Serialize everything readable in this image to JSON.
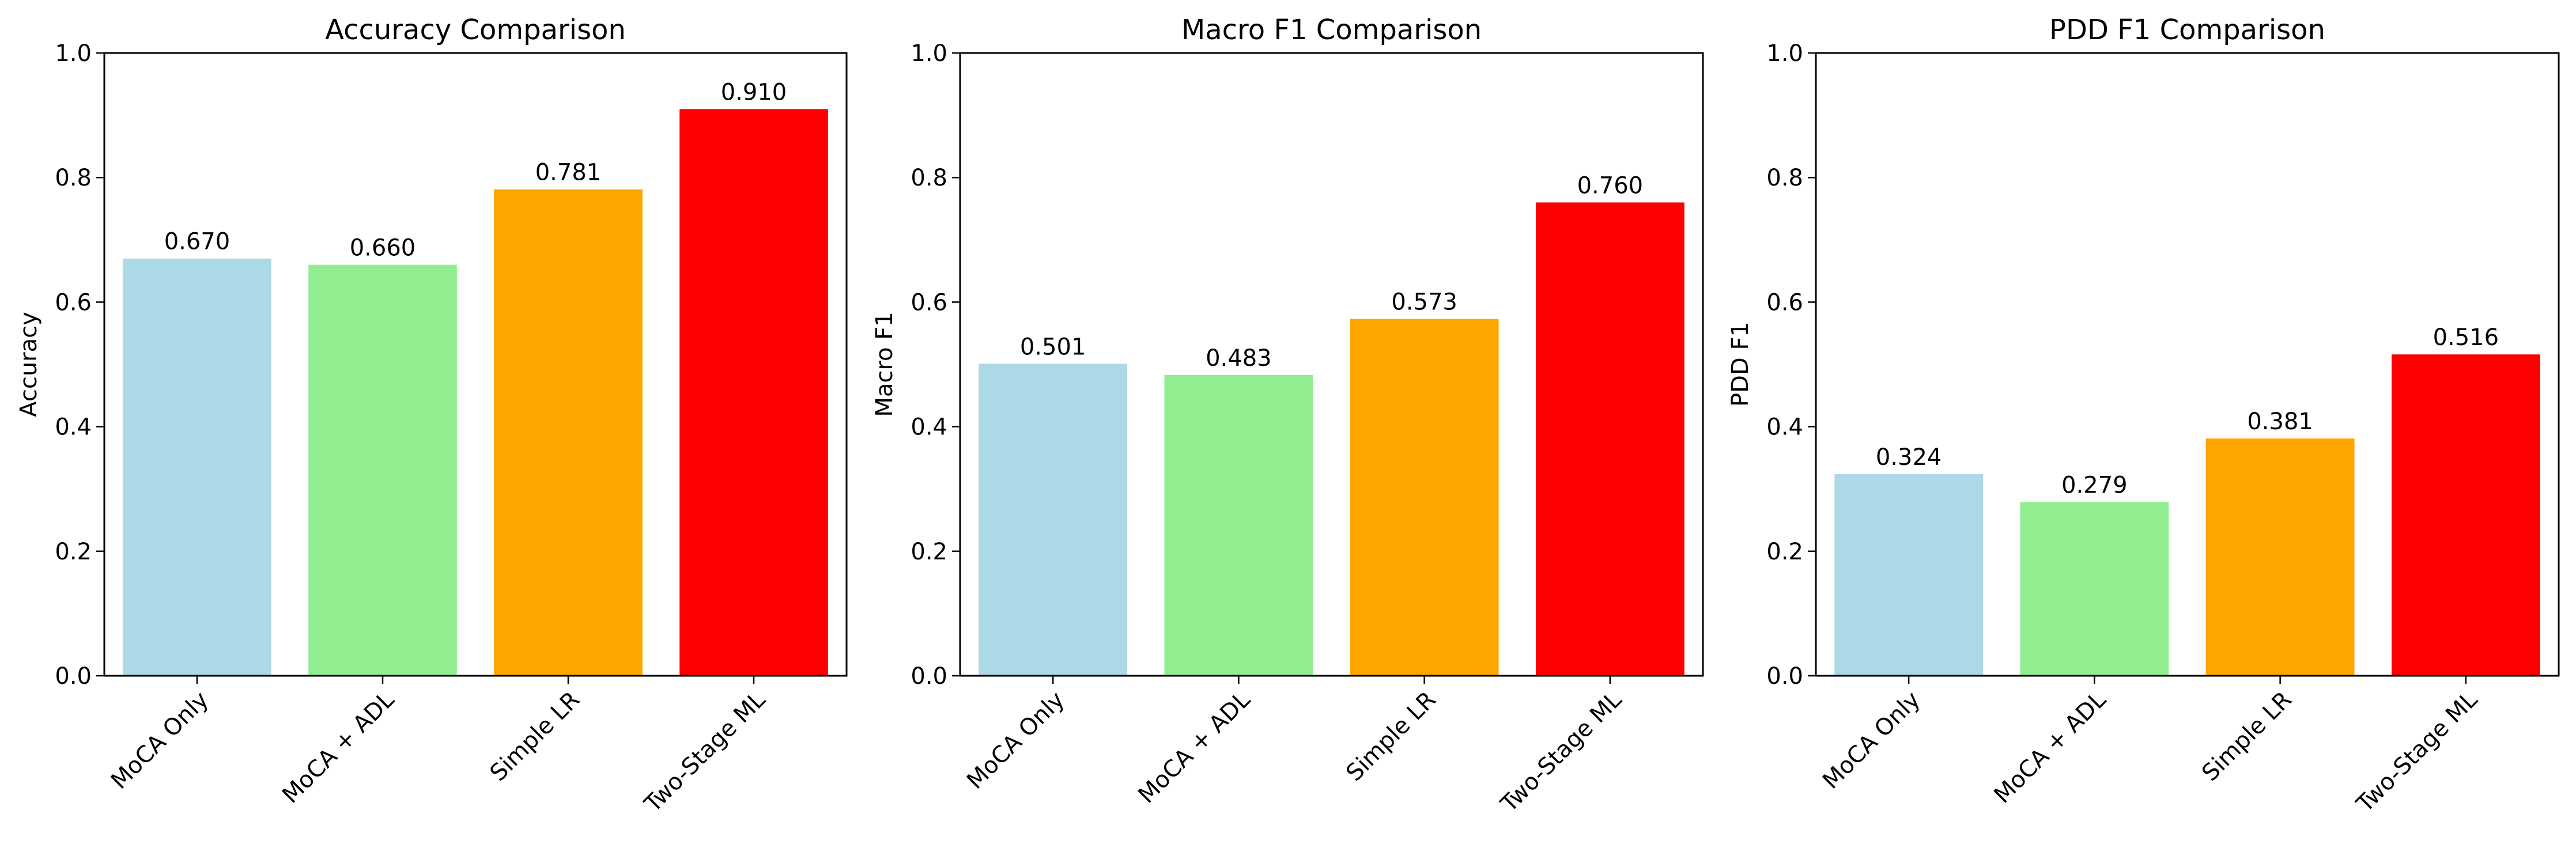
{
  "chart_data": [
    {
      "type": "bar",
      "title": "Accuracy Comparison",
      "xlabel": "",
      "ylabel": "Accuracy",
      "categories": [
        "MoCA Only",
        "MoCA + ADL",
        "Simple LR",
        "Two-Stage ML"
      ],
      "values": [
        0.67,
        0.66,
        0.781,
        0.91
      ],
      "value_labels": [
        "0.670",
        "0.660",
        "0.781",
        "0.910"
      ],
      "colors": [
        "#add8e6",
        "#90ee90",
        "#ffa500",
        "#ff0000"
      ],
      "ylim": [
        0,
        1.0
      ],
      "yticks": [
        0.0,
        0.2,
        0.4,
        0.6,
        0.8,
        1.0
      ],
      "ytick_labels": [
        "0.0",
        "0.2",
        "0.4",
        "0.6",
        "0.8",
        "1.0"
      ],
      "grid": false
    },
    {
      "type": "bar",
      "title": "Macro F1 Comparison",
      "xlabel": "",
      "ylabel": "Macro F1",
      "categories": [
        "MoCA Only",
        "MoCA + ADL",
        "Simple LR",
        "Two-Stage ML"
      ],
      "values": [
        0.501,
        0.483,
        0.573,
        0.76
      ],
      "value_labels": [
        "0.501",
        "0.483",
        "0.573",
        "0.760"
      ],
      "colors": [
        "#add8e6",
        "#90ee90",
        "#ffa500",
        "#ff0000"
      ],
      "ylim": [
        0,
        1.0
      ],
      "yticks": [
        0.0,
        0.2,
        0.4,
        0.6,
        0.8,
        1.0
      ],
      "ytick_labels": [
        "0.0",
        "0.2",
        "0.4",
        "0.6",
        "0.8",
        "1.0"
      ],
      "grid": false
    },
    {
      "type": "bar",
      "title": "PDD F1 Comparison",
      "xlabel": "",
      "ylabel": "PDD F1",
      "categories": [
        "MoCA Only",
        "MoCA + ADL",
        "Simple LR",
        "Two-Stage ML"
      ],
      "values": [
        0.324,
        0.279,
        0.381,
        0.516
      ],
      "value_labels": [
        "0.324",
        "0.279",
        "0.381",
        "0.516"
      ],
      "colors": [
        "#add8e6",
        "#90ee90",
        "#ffa500",
        "#ff0000"
      ],
      "ylim": [
        0,
        1.0
      ],
      "yticks": [
        0.0,
        0.2,
        0.4,
        0.6,
        0.8,
        1.0
      ],
      "ytick_labels": [
        "0.0",
        "0.2",
        "0.4",
        "0.6",
        "0.8",
        "1.0"
      ],
      "grid": false
    }
  ]
}
